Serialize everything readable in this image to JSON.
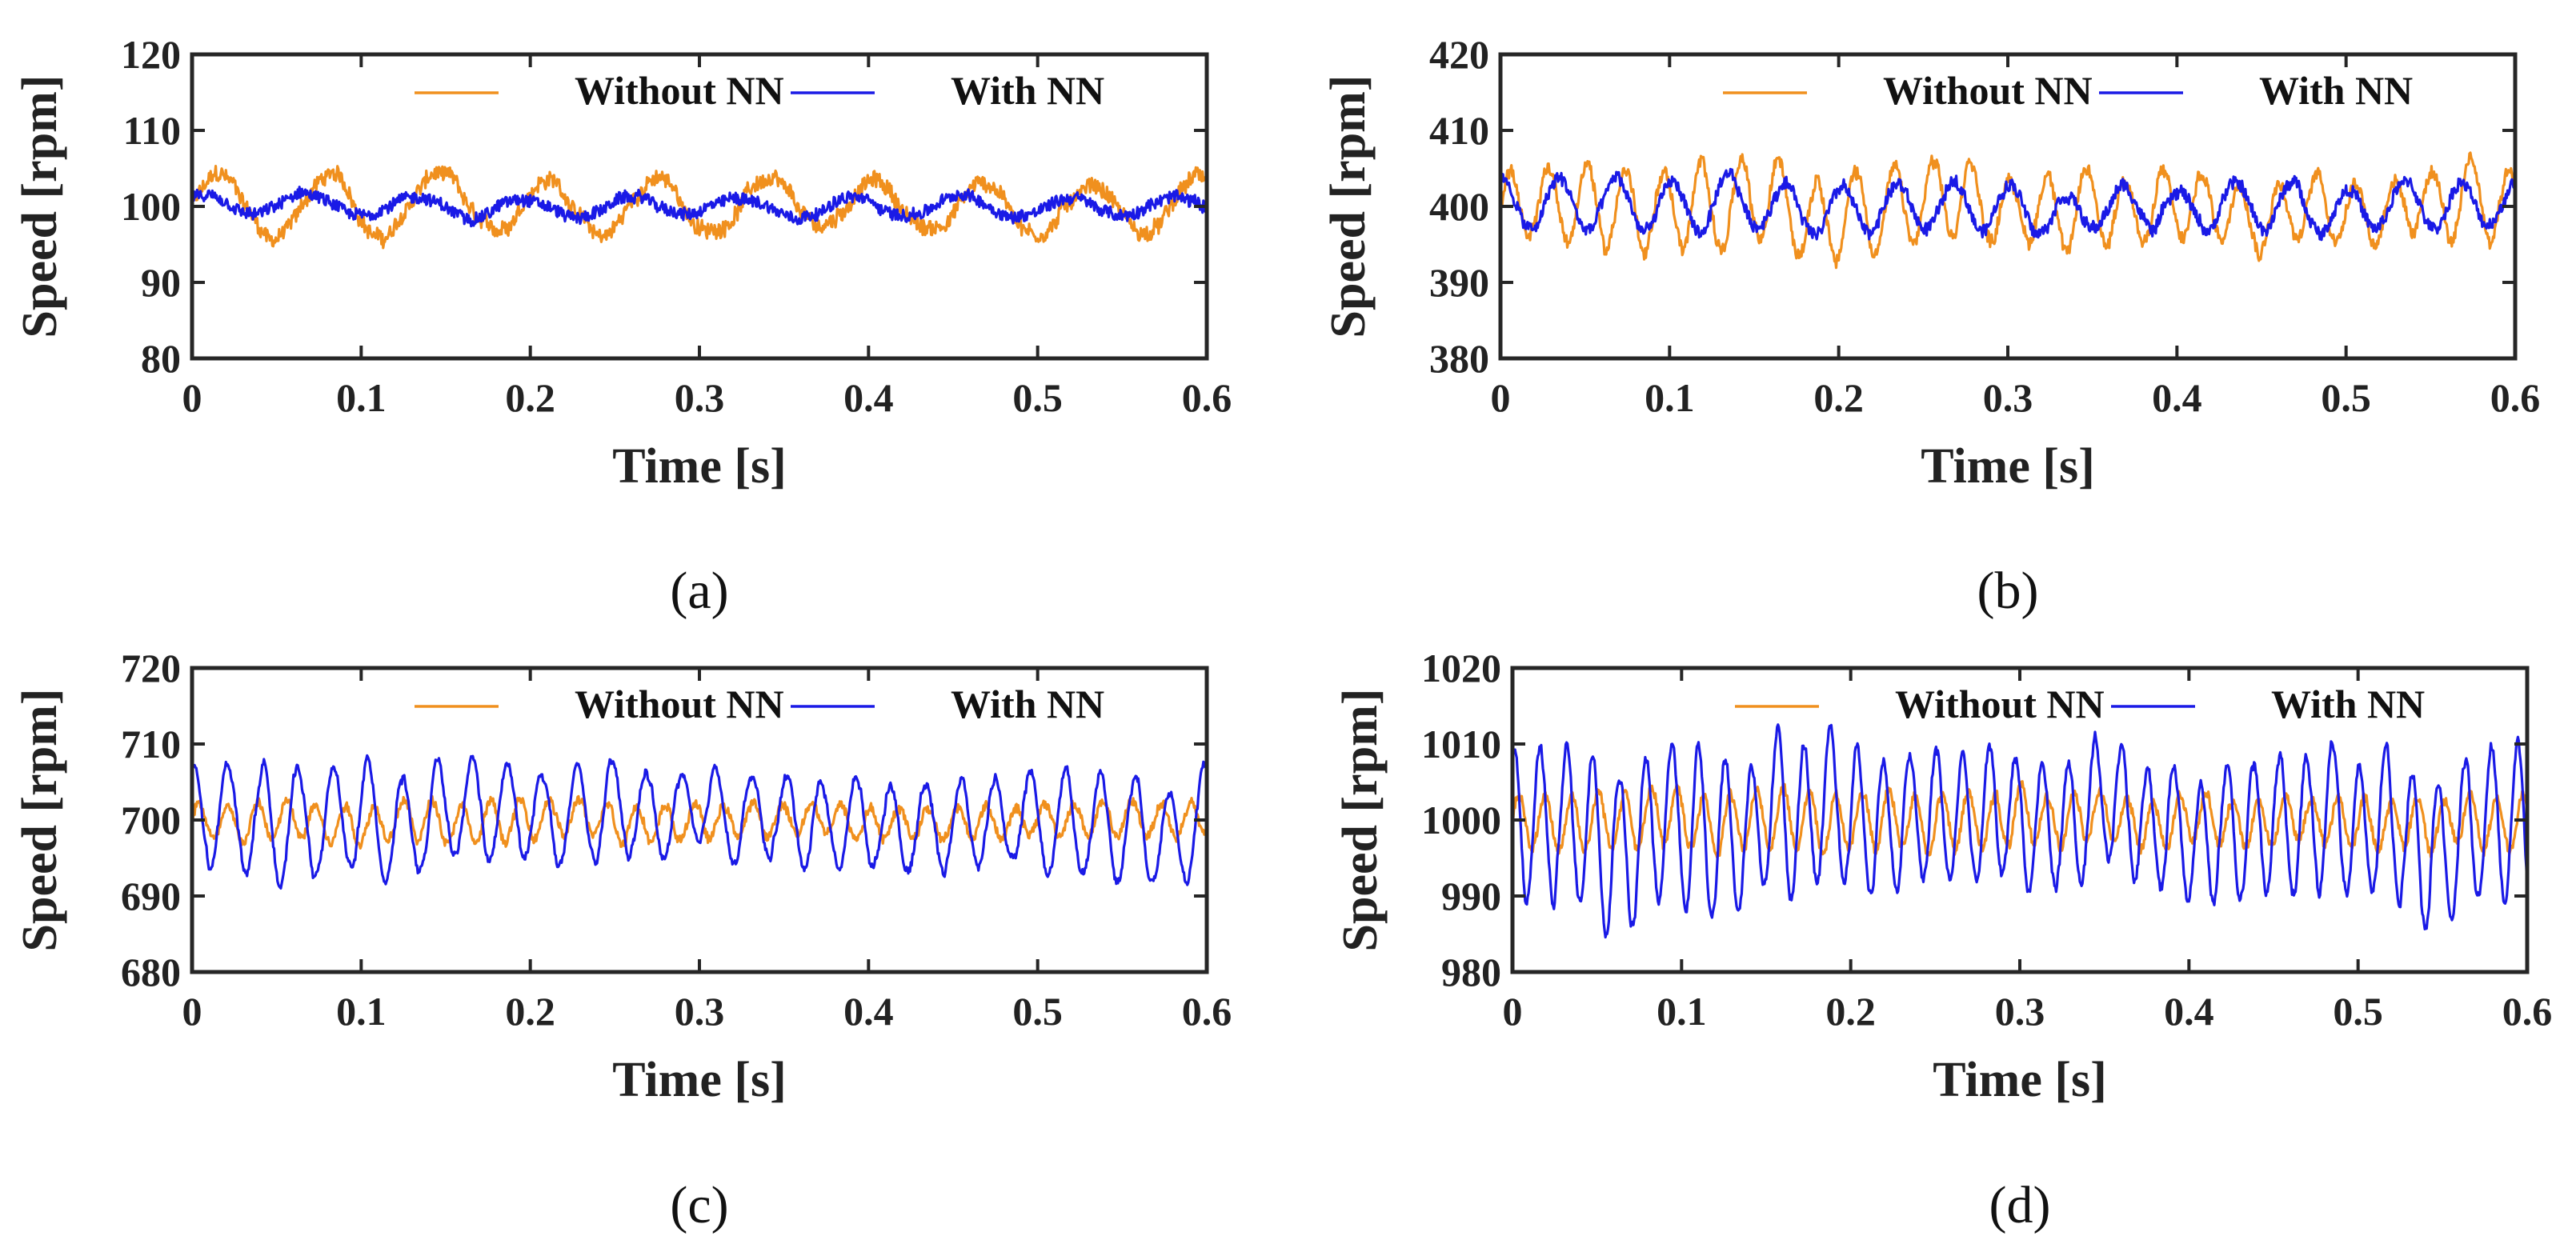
{
  "chart_data": [
    {
      "type": "line",
      "caption": "(a)",
      "xlabel": "Time [s]",
      "ylabel": "Speed [rpm]",
      "xlim": [
        0,
        0.6
      ],
      "ylim": [
        80,
        120
      ],
      "xticks": [
        "0",
        "0.1",
        "0.2",
        "0.3",
        "0.4",
        "0.5",
        "0.6"
      ],
      "yticks": [
        "80",
        "90",
        "100",
        "110",
        "120"
      ],
      "legend": "top-right",
      "grid": false,
      "series": [
        {
          "name": "Without NN",
          "color": "#F0901E",
          "mean": 100,
          "amplitude": 3.6,
          "frequency_hz": 15.5,
          "noise": 1.0
        },
        {
          "name": "With NN",
          "color": "#1A1AE6",
          "mean": 100,
          "amplitude": 1.3,
          "frequency_hz": 15.5,
          "noise": 0.8
        }
      ]
    },
    {
      "type": "line",
      "caption": "(b)",
      "xlabel": "Time [s]",
      "ylabel": "Speed [rpm]",
      "xlim": [
        0,
        0.6
      ],
      "ylim": [
        380,
        420
      ],
      "xticks": [
        "0",
        "0.1",
        "0.2",
        "0.3",
        "0.4",
        "0.5",
        "0.6"
      ],
      "yticks": [
        "380",
        "390",
        "400",
        "410",
        "420"
      ],
      "legend": "top-right",
      "grid": false,
      "series": [
        {
          "name": "Without NN",
          "color": "#F0901E",
          "mean": 400,
          "amplitude": 4.8,
          "frequency_hz": 44,
          "noise": 0.8
        },
        {
          "name": "With NN",
          "color": "#1A1AE6",
          "mean": 400,
          "amplitude": 3.0,
          "frequency_hz": 30,
          "noise": 0.8
        }
      ]
    },
    {
      "type": "line",
      "caption": "(c)",
      "xlabel": "Time [s]",
      "ylabel": "Speed [rpm]",
      "xlim": [
        0,
        0.6
      ],
      "ylim": [
        680,
        720
      ],
      "xticks": [
        "0",
        "0.1",
        "0.2",
        "0.3",
        "0.4",
        "0.5",
        "0.6"
      ],
      "yticks": [
        "680",
        "690",
        "700",
        "710",
        "720"
      ],
      "legend": "top-right",
      "grid": false,
      "series": [
        {
          "name": "Without NN",
          "color": "#F0901E",
          "mean": 700,
          "amplitude": 2.3,
          "frequency_hz": 58,
          "noise": 0.6
        },
        {
          "name": "With NN",
          "color": "#1A1AE6",
          "mean": 700,
          "amplitude": 6.3,
          "frequency_hz": 48.5,
          "noise": 0.3
        }
      ]
    },
    {
      "type": "line",
      "caption": "(d)",
      "xlabel": "Time [s]",
      "ylabel": "Speed [rpm]",
      "xlim": [
        0,
        0.6
      ],
      "ylim": [
        980,
        1020
      ],
      "xticks": [
        "0",
        "0.1",
        "0.2",
        "0.3",
        "0.4",
        "0.5",
        "0.6"
      ],
      "yticks": [
        "980",
        "990",
        "1000",
        "1010",
        "1020"
      ],
      "legend": "top-right",
      "grid": false,
      "series": [
        {
          "name": "Without NN",
          "color": "#F0901E",
          "mean": 1000,
          "amplitude": 3.5,
          "frequency_hz": 64,
          "noise": 0.6
        },
        {
          "name": "With NN",
          "color": "#1A1AE6",
          "mean": 999.5,
          "amplitude": 9.3,
          "frequency_hz": 64,
          "noise": 0.3
        }
      ]
    }
  ]
}
